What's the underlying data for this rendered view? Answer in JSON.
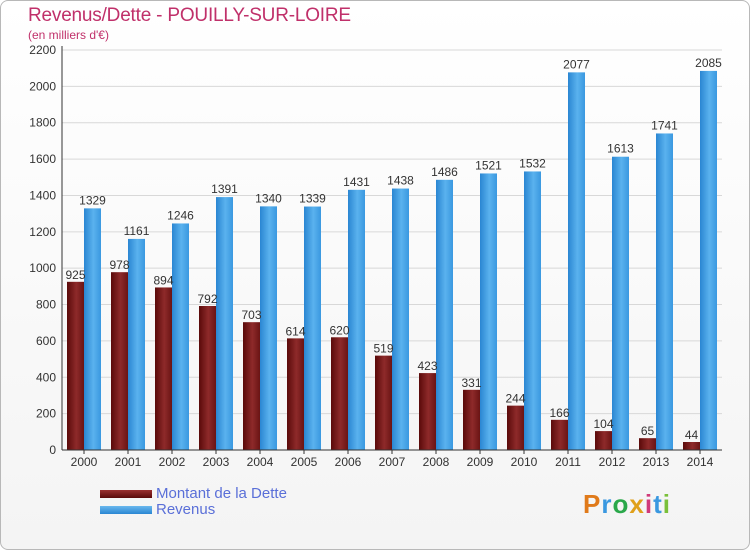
{
  "title": "Revenus/Dette - POUILLY-SUR-LOIRE",
  "subtitle": "(en milliers d'€)",
  "logo_text": "Proxiti",
  "colors": {
    "title": "#c0306a",
    "debt": "#7a1a1a",
    "revenue": "#3a98e0",
    "legend_text": "#5a6fd8"
  },
  "chart_data": {
    "type": "bar",
    "title": "Revenus/Dette - POUILLY-SUR-LOIRE",
    "subtitle": "(en milliers d'€)",
    "xlabel": "",
    "ylabel": "",
    "ylim": [
      0,
      2200
    ],
    "yticks": [
      0,
      200,
      400,
      600,
      800,
      1000,
      1200,
      1400,
      1600,
      1800,
      2000,
      2200
    ],
    "grid": true,
    "legend_position": "bottom-left",
    "categories": [
      "2000",
      "2001",
      "2002",
      "2003",
      "2004",
      "2005",
      "2006",
      "2007",
      "2008",
      "2009",
      "2010",
      "2011",
      "2012",
      "2013",
      "2014"
    ],
    "series": [
      {
        "name": "Montant de la Dette",
        "color": "#7a1a1a",
        "values": [
          925,
          978,
          894,
          792,
          703,
          614,
          620,
          519,
          423,
          331,
          244,
          166,
          104,
          65,
          44
        ]
      },
      {
        "name": "Revenus",
        "color": "#3a98e0",
        "values": [
          1329,
          1161,
          1246,
          1391,
          1340,
          1339,
          1431,
          1438,
          1486,
          1521,
          1532,
          2077,
          1613,
          1741,
          2085
        ]
      }
    ]
  }
}
